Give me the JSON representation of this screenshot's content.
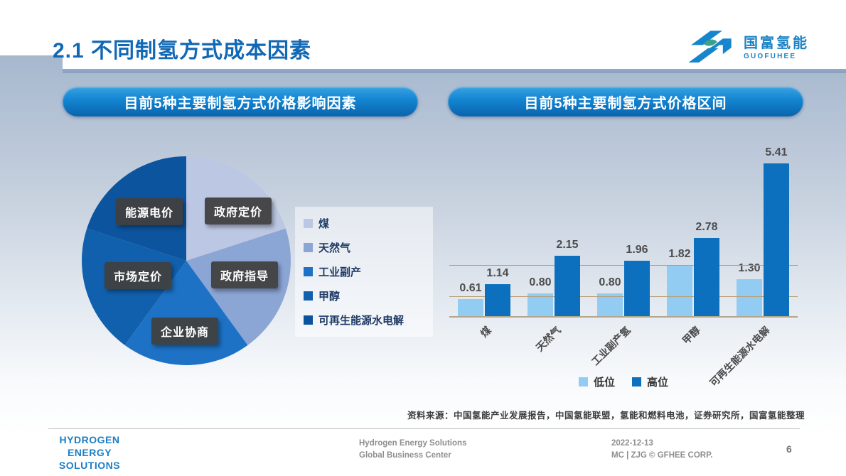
{
  "slide": {
    "title": "2.1 不同制氢方式成本因素"
  },
  "logo": {
    "name": "国富氢能",
    "subtitle": "GUOFUHEE"
  },
  "panels": {
    "left": {
      "header": "目前5种主要制氢方式价格影响因素"
    },
    "right": {
      "header": "目前5种主要制氢方式价格区间"
    }
  },
  "chart_data": [
    {
      "type": "pie",
      "title": "目前5种主要制氢方式价格影响因素",
      "slices": [
        {
          "label": "政府定价",
          "legend": "煤",
          "value": 20,
          "color": "#bcc7e3"
        },
        {
          "label": "政府指导",
          "legend": "天然气",
          "value": 20,
          "color": "#8ba5d5"
        },
        {
          "label": "企业协商",
          "legend": "工业副产",
          "value": 20,
          "color": "#1d72c6"
        },
        {
          "label": "市场定价",
          "legend": "甲醇",
          "value": 20,
          "color": "#1160ae"
        },
        {
          "label": "能源电价",
          "legend": "可再生能源水电解",
          "value": 20,
          "color": "#0d549e"
        }
      ],
      "legend_position": "right"
    },
    {
      "type": "bar",
      "title": "目前5种主要制氢方式价格区间",
      "categories": [
        "煤",
        "天然气",
        "工业副产氢",
        "甲醇",
        "可再生能源水电解"
      ],
      "series": [
        {
          "name": "低位",
          "color": "#92ccf3",
          "values": [
            0.61,
            0.8,
            0.8,
            1.82,
            1.3
          ]
        },
        {
          "name": "高位",
          "color": "#0c70bf",
          "values": [
            1.14,
            2.15,
            1.96,
            2.78,
            5.41
          ]
        }
      ],
      "ylim": [
        0,
        6.3
      ],
      "gridlines": [
        0.68,
        1.8
      ],
      "grid_color": "#b89d70",
      "legend_position": "bottom"
    }
  ],
  "source_note": "资料来源：中国氢能产业发展报告，中国氢能联盟，氢能和燃料电池，证券研究所，国富氢能整理",
  "footer": {
    "brand_lines": [
      "HYDROGEN",
      "ENERGY",
      "SOLUTIONS"
    ],
    "center_lines": [
      "Hydrogen Energy Solutions",
      "Global Business Center"
    ],
    "right_lines": [
      "2022-12-13",
      "MC | ZJG © GFHEE CORP."
    ],
    "page_number": "6"
  }
}
